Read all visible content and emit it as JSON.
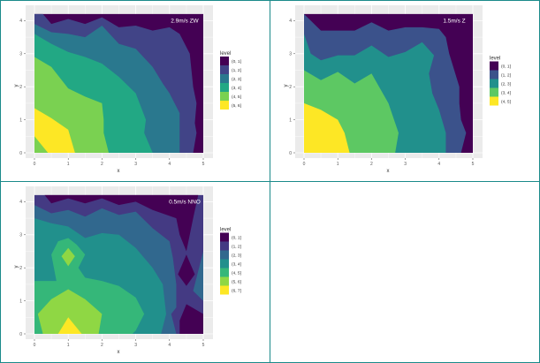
{
  "chart_data": [
    {
      "type": "contour",
      "title": "2.9m/s ZW",
      "xlabel": "x",
      "ylabel": "y",
      "xlim": [
        0,
        5
      ],
      "ylim": [
        0,
        4.2
      ],
      "xticks": [
        "0",
        "1",
        "2",
        "3",
        "4",
        "5"
      ],
      "yticks": [
        "0",
        "1",
        "2",
        "3",
        "4"
      ],
      "legend_title": "level",
      "legend_position": "right",
      "levels": [
        "(0, 1]",
        "(1, 2]",
        "(2, 3]",
        "(3, 4]",
        "(4, 5]",
        "(5, 6]"
      ],
      "colors": [
        "#440154",
        "#414487",
        "#2A788E",
        "#22A884",
        "#7AD151",
        "#FDE725"
      ],
      "regions": [
        {
          "level": 0,
          "points": [
            [
              0,
              0
            ],
            [
              0,
              4.2
            ],
            [
              5,
              4.2
            ],
            [
              5,
              0
            ]
          ]
        },
        {
          "level": 1,
          "points": [
            [
              0,
              0
            ],
            [
              0,
              4.2
            ],
            [
              0.25,
              4.2
            ],
            [
              0.5,
              3.9
            ],
            [
              1,
              4.05
            ],
            [
              1.5,
              3.9
            ],
            [
              2,
              4.1
            ],
            [
              2.5,
              3.8
            ],
            [
              3,
              3.85
            ],
            [
              3.5,
              3.7
            ],
            [
              4,
              3.8
            ],
            [
              4.3,
              3.6
            ],
            [
              4.6,
              3.0
            ],
            [
              4.7,
              2.0
            ],
            [
              4.8,
              1.5
            ],
            [
              4.75,
              0.9
            ],
            [
              4.8,
              0.6
            ],
            [
              4.7,
              0
            ]
          ]
        },
        {
          "level": 2,
          "points": [
            [
              0,
              0
            ],
            [
              0,
              3.9
            ],
            [
              0.5,
              3.65
            ],
            [
              1,
              3.6
            ],
            [
              1.5,
              3.5
            ],
            [
              2,
              3.85
            ],
            [
              2.5,
              3.3
            ],
            [
              3,
              3.15
            ],
            [
              3.5,
              2.6
            ],
            [
              3.8,
              2.1
            ],
            [
              4,
              1.8
            ],
            [
              4.3,
              1.2
            ],
            [
              4.3,
              0
            ]
          ]
        },
        {
          "level": 3,
          "points": [
            [
              0,
              0
            ],
            [
              0,
              3.6
            ],
            [
              0.5,
              3.3
            ],
            [
              1,
              3.05
            ],
            [
              1.5,
              2.9
            ],
            [
              2,
              2.7
            ],
            [
              2.5,
              2.3
            ],
            [
              3,
              1.8
            ],
            [
              3.3,
              1.0
            ],
            [
              3.25,
              0.6
            ],
            [
              3.5,
              0
            ]
          ]
        },
        {
          "level": 4,
          "points": [
            [
              0,
              0
            ],
            [
              0,
              2.9
            ],
            [
              0.5,
              2.6
            ],
            [
              1,
              1.95
            ],
            [
              1.5,
              1.7
            ],
            [
              2,
              1.5
            ],
            [
              2.05,
              1.0
            ],
            [
              2.05,
              0.6
            ],
            [
              2.2,
              0
            ]
          ]
        },
        {
          "level": 5,
          "points": [
            [
              0,
              0.5
            ],
            [
              0,
              1.35
            ],
            [
              0.5,
              1.05
            ],
            [
              1,
              0.7
            ],
            [
              1.2,
              0
            ],
            [
              0.4,
              0
            ]
          ]
        }
      ]
    },
    {
      "type": "contour",
      "title": "1.5m/s Z",
      "xlabel": "x",
      "ylabel": "y",
      "xlim": [
        0,
        5
      ],
      "ylim": [
        0,
        4.2
      ],
      "xticks": [
        "0",
        "1",
        "2",
        "3",
        "4",
        "5"
      ],
      "yticks": [
        "0",
        "1",
        "2",
        "3",
        "4"
      ],
      "legend_title": "level",
      "legend_position": "right",
      "levels": [
        "(0, 1]",
        "(1, 2]",
        "(2, 3]",
        "(3, 4]",
        "(4, 5]"
      ],
      "colors": [
        "#440154",
        "#3B528B",
        "#21908C",
        "#5DC863",
        "#FDE725"
      ],
      "regions": [
        {
          "level": 0,
          "points": [
            [
              0,
              0
            ],
            [
              0,
              4.2
            ],
            [
              5,
              4.2
            ],
            [
              5,
              0
            ]
          ]
        },
        {
          "level": 1,
          "points": [
            [
              0,
              0
            ],
            [
              0,
              4.2
            ],
            [
              0.5,
              3.7
            ],
            [
              1,
              3.7
            ],
            [
              1.5,
              3.7
            ],
            [
              2,
              3.95
            ],
            [
              2.5,
              3.7
            ],
            [
              3,
              3.8
            ],
            [
              3.5,
              3.8
            ],
            [
              4,
              3.75
            ],
            [
              4.2,
              3.5
            ],
            [
              4.3,
              3.0
            ],
            [
              4.6,
              2.0
            ],
            [
              4.6,
              1.5
            ],
            [
              4.65,
              1.0
            ],
            [
              4.8,
              0.6
            ],
            [
              4.65,
              0
            ]
          ]
        },
        {
          "level": 2,
          "points": [
            [
              0,
              0
            ],
            [
              0,
              3.6
            ],
            [
              0.2,
              3.0
            ],
            [
              0.5,
              2.8
            ],
            [
              1,
              2.95
            ],
            [
              1.5,
              2.95
            ],
            [
              2,
              3.25
            ],
            [
              2.5,
              2.9
            ],
            [
              3,
              3.05
            ],
            [
              3.5,
              3.35
            ],
            [
              3.85,
              2.95
            ],
            [
              3.7,
              2.4
            ],
            [
              3.8,
              1.8
            ],
            [
              4.0,
              1.3
            ],
            [
              4.2,
              0.6
            ],
            [
              4.2,
              0
            ]
          ]
        },
        {
          "level": 3,
          "points": [
            [
              0,
              0
            ],
            [
              0,
              2.5
            ],
            [
              0.5,
              2.2
            ],
            [
              1,
              2.45
            ],
            [
              1.5,
              2.1
            ],
            [
              2,
              2.4
            ],
            [
              2.5,
              1.5
            ],
            [
              2.8,
              0.6
            ],
            [
              2.7,
              0
            ]
          ]
        },
        {
          "level": 4,
          "points": [
            [
              0,
              0
            ],
            [
              0,
              1.5
            ],
            [
              0.5,
              1.3
            ],
            [
              1,
              1.0
            ],
            [
              1.2,
              0.6
            ],
            [
              1.35,
              0
            ]
          ]
        }
      ]
    },
    {
      "type": "contour",
      "title": "0.5m/s NNO",
      "xlabel": "x",
      "ylabel": "y",
      "xlim": [
        0,
        5
      ],
      "ylim": [
        0,
        4.2
      ],
      "xticks": [
        "0",
        "1",
        "2",
        "3",
        "4",
        "5"
      ],
      "yticks": [
        "0",
        "1",
        "2",
        "3",
        "4"
      ],
      "legend_title": "level",
      "legend_position": "right",
      "levels": [
        "(0, 1]",
        "(1, 2]",
        "(2, 3]",
        "(3, 4]",
        "(4, 5]",
        "(5, 6]",
        "(6, 7]"
      ],
      "colors": [
        "#440154",
        "#443A83",
        "#31688E",
        "#21908C",
        "#35B779",
        "#8FD744",
        "#FDE725"
      ],
      "regions": [
        {
          "level": 1,
          "points": [
            [
              0,
              0
            ],
            [
              0,
              4.2
            ],
            [
              5,
              4.2
            ],
            [
              5,
              0
            ]
          ]
        },
        {
          "level": 0,
          "points": [
            [
              0.3,
              4.2
            ],
            [
              4.85,
              4.2
            ],
            [
              4.7,
              3.5
            ],
            [
              4.5,
              2.5
            ],
            [
              4.3,
              3.0
            ],
            [
              4.2,
              3.5
            ],
            [
              3.5,
              3.75
            ],
            [
              3,
              4.0
            ],
            [
              2.5,
              3.9
            ],
            [
              2,
              4.1
            ],
            [
              1.5,
              3.95
            ],
            [
              1,
              4.1
            ],
            [
              0.5,
              3.95
            ]
          ]
        },
        {
          "level": 0,
          "points": [
            [
              4.5,
              2.4
            ],
            [
              4.75,
              1.8
            ],
            [
              4.5,
              1.45
            ],
            [
              4.25,
              1.8
            ]
          ]
        },
        {
          "level": 0,
          "points": [
            [
              4.3,
              0
            ],
            [
              5,
              0
            ],
            [
              5,
              0.6
            ],
            [
              4.5,
              0.9
            ],
            [
              4.3,
              0.4
            ]
          ]
        },
        {
          "level": 2,
          "points": [
            [
              5,
              1.0
            ],
            [
              4.7,
              1.3
            ],
            [
              5,
              2.5
            ]
          ]
        },
        {
          "level": 2,
          "points": [
            [
              0,
              0
            ],
            [
              0,
              3.9
            ],
            [
              0.5,
              3.65
            ],
            [
              1,
              3.75
            ],
            [
              1.5,
              3.55
            ],
            [
              2,
              3.8
            ],
            [
              2.5,
              3.6
            ],
            [
              3,
              3.7
            ],
            [
              3.5,
              3.2
            ],
            [
              4,
              2.8
            ],
            [
              4.1,
              2.3
            ],
            [
              4.2,
              1.5
            ],
            [
              4.2,
              0.8
            ],
            [
              4.05,
              0.6
            ],
            [
              4.2,
              0
            ]
          ]
        },
        {
          "level": 3,
          "points": [
            [
              0,
              0
            ],
            [
              0,
              3.5
            ],
            [
              0.5,
              3.35
            ],
            [
              1,
              3.25
            ],
            [
              1.5,
              2.9
            ],
            [
              2,
              3.05
            ],
            [
              2.5,
              3.0
            ],
            [
              3,
              2.6
            ],
            [
              3.5,
              2.0
            ],
            [
              3.8,
              1.5
            ],
            [
              3.9,
              0.6
            ],
            [
              3.75,
              0
            ]
          ]
        },
        {
          "level": 4,
          "points": [
            [
              0,
              0
            ],
            [
              0,
              1.6
            ],
            [
              0.65,
              1.6
            ],
            [
              0.5,
              2.4
            ],
            [
              0.7,
              2.8
            ],
            [
              1,
              2.9
            ],
            [
              1.25,
              2.7
            ],
            [
              1.5,
              2.4
            ],
            [
              1.3,
              2.0
            ],
            [
              1.5,
              1.7
            ],
            [
              2,
              1.6
            ],
            [
              2.5,
              1.45
            ],
            [
              3,
              1.1
            ],
            [
              3.25,
              0.6
            ],
            [
              3.0,
              0.1
            ],
            [
              2.9,
              0
            ]
          ]
        },
        {
          "level": 5,
          "points": [
            [
              1,
              2.05
            ],
            [
              1.2,
              2.35
            ],
            [
              1,
              2.6
            ],
            [
              0.8,
              2.35
            ]
          ]
        },
        {
          "level": 5,
          "points": [
            [
              0.25,
              0
            ],
            [
              0.1,
              0.6
            ],
            [
              0.5,
              1.05
            ],
            [
              1,
              1.35
            ],
            [
              1.5,
              1.05
            ],
            [
              2,
              0.6
            ],
            [
              1.9,
              0
            ]
          ]
        },
        {
          "level": 6,
          "points": [
            [
              0.7,
              0
            ],
            [
              1,
              0.5
            ],
            [
              1.4,
              0
            ]
          ]
        }
      ]
    }
  ]
}
